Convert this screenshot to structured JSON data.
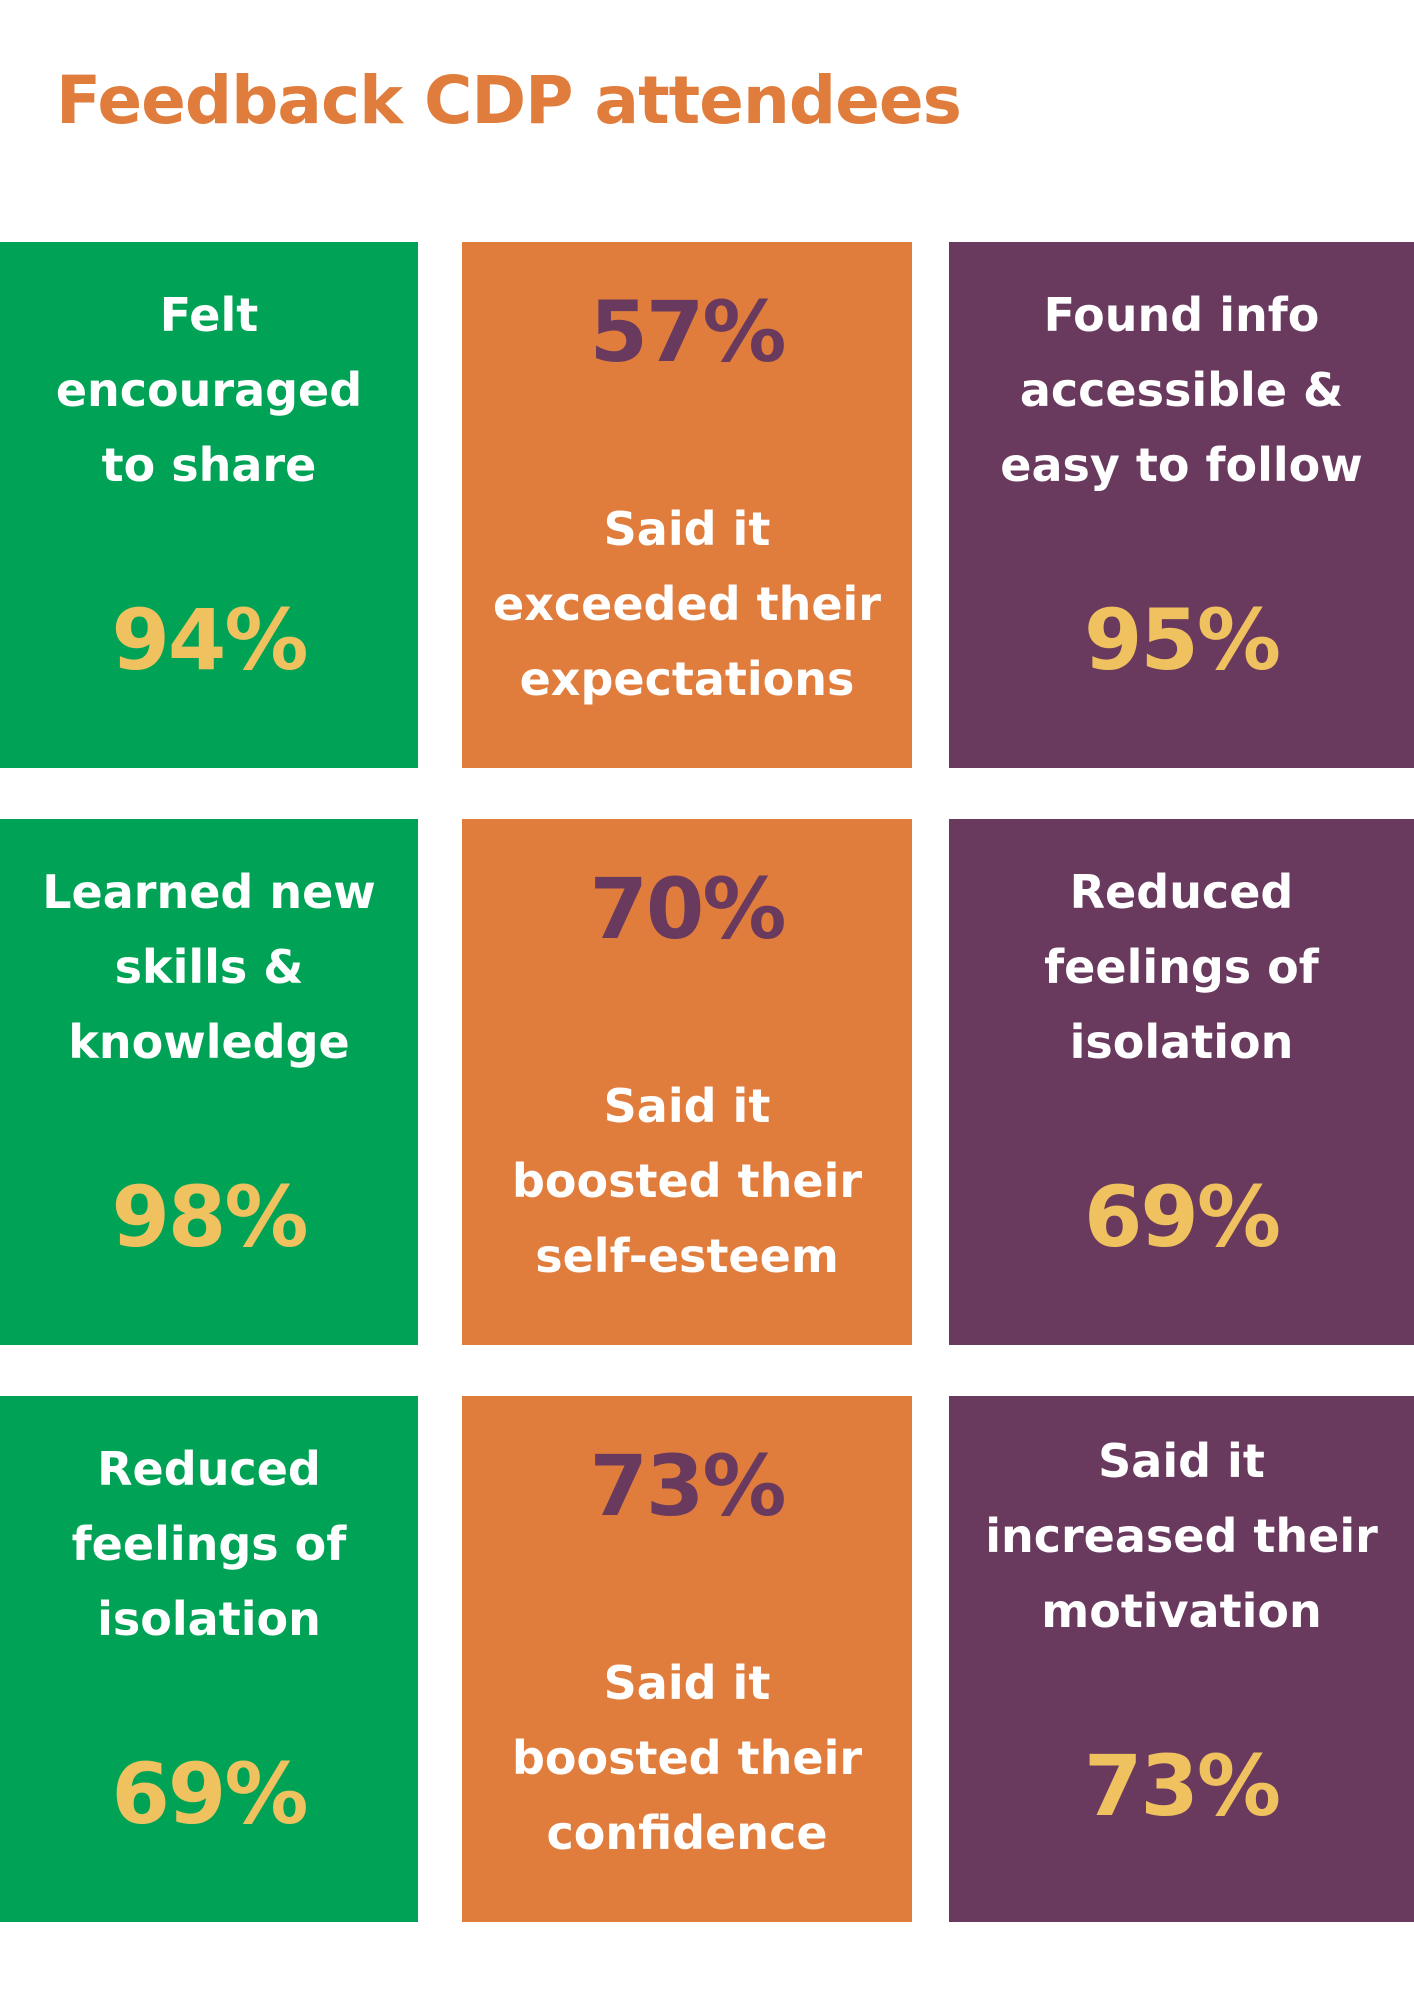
{
  "title": "Feedback CDP attendees",
  "colors": {
    "green": "#00a355",
    "orange": "#e07d3d",
    "purple": "#693a5e",
    "yellow": "#efc15f",
    "title": "#e07d3d"
  },
  "tiles": [
    {
      "label": [
        "Felt",
        "encouraged",
        "to share"
      ],
      "value": "94%"
    },
    {
      "label": [
        "Said it",
        "exceeded their",
        "expectations"
      ],
      "value": "57%"
    },
    {
      "label": [
        "Found info",
        "accessible &",
        "easy to follow"
      ],
      "value": "95%"
    },
    {
      "label": [
        "Learned new",
        "skills &",
        "knowledge"
      ],
      "value": "98%"
    },
    {
      "label": [
        "Said it",
        "boosted their",
        "self-esteem"
      ],
      "value": "70%"
    },
    {
      "label": [
        "Reduced",
        "feelings of",
        "isolation"
      ],
      "value": "69%"
    },
    {
      "label": [
        "Reduced",
        "feelings of",
        "isolation"
      ],
      "value": "69%"
    },
    {
      "label": [
        "Said it",
        "boosted their",
        "confidence"
      ],
      "value": "73%"
    },
    {
      "label": [
        "Said it",
        "increased their",
        "motivation"
      ],
      "value": "73%"
    }
  ]
}
